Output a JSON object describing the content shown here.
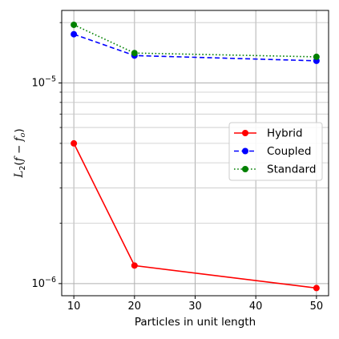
{
  "chart_data": {
    "type": "line",
    "title": "",
    "xlabel": "Particles in unit length",
    "ylabel": "L2(f − fo)",
    "yscale": "log",
    "xlim": [
      8,
      52
    ],
    "ylim": [
      8.7e-07,
      2.3e-05
    ],
    "grid": true,
    "legend_position": "center-right",
    "x": [
      10,
      20,
      50
    ],
    "x_ticks": [
      {
        "value": 10,
        "label": "10"
      },
      {
        "value": 20,
        "label": "20"
      },
      {
        "value": 30,
        "label": "30"
      },
      {
        "value": 40,
        "label": "40"
      },
      {
        "value": 50,
        "label": "50"
      }
    ],
    "y_major_ticks": [
      {
        "value": 1e-06,
        "base": "10",
        "exp": "−6"
      },
      {
        "value": 1e-05,
        "base": "10",
        "exp": "−5"
      }
    ],
    "y_minor_ticks": [
      2e-06,
      3e-06,
      4e-06,
      5e-06,
      6e-06,
      7e-06,
      8e-06,
      9e-06,
      2e-05
    ],
    "series": [
      {
        "name": "Hybrid",
        "color": "#ff0000",
        "linestyle": "solid",
        "values": [
          5e-06,
          1.23e-06,
          9.5e-07
        ]
      },
      {
        "name": "Coupled",
        "color": "#0000ff",
        "linestyle": "dashed",
        "values": [
          1.75e-05,
          1.37e-05,
          1.29e-05
        ]
      },
      {
        "name": "Standard",
        "color": "#008000",
        "linestyle": "dotted",
        "values": [
          1.95e-05,
          1.41e-05,
          1.35e-05
        ]
      }
    ]
  }
}
